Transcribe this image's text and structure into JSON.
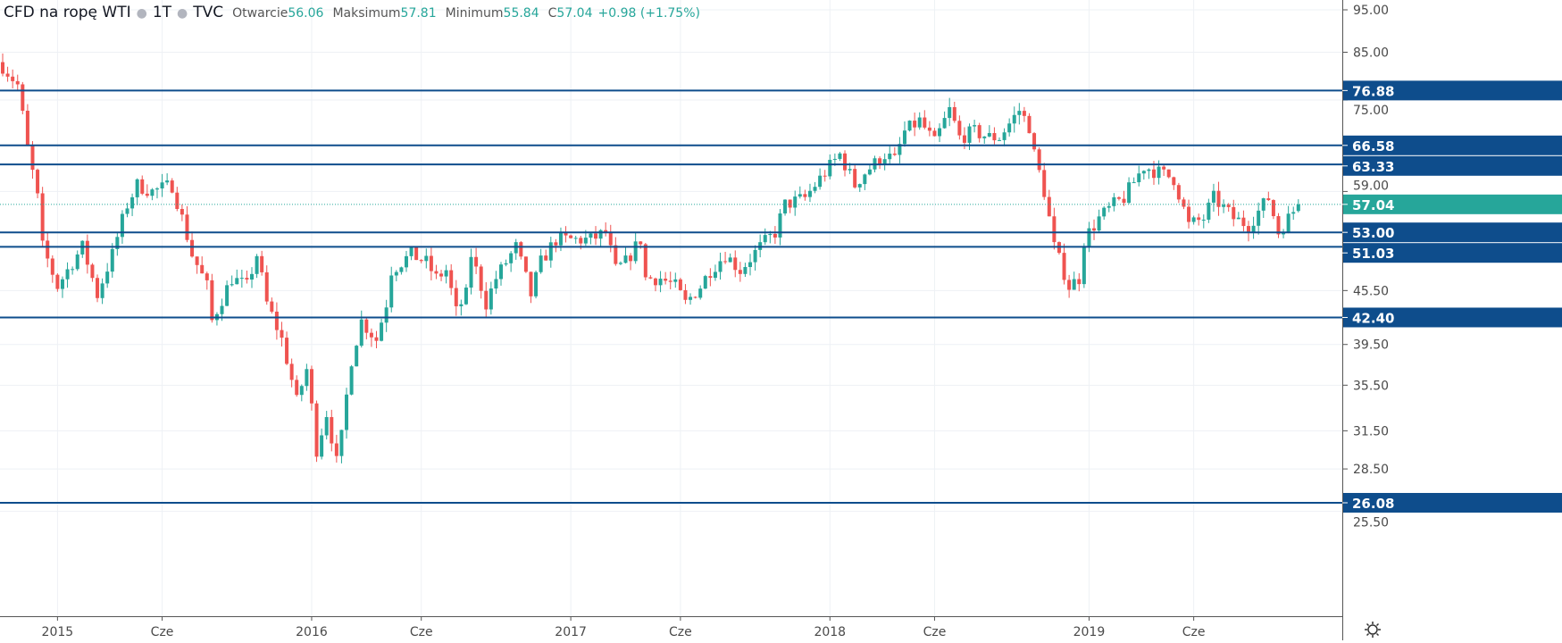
{
  "legend": {
    "symbol": "CFD na ropę WTI",
    "interval": "1T",
    "source": "TVC",
    "open_label": "Otwarcie",
    "open": "56.06",
    "high_label": "Maksimum",
    "high": "57.81",
    "low_label": "Minimum",
    "low": "55.84",
    "close_label": "C",
    "close": "57.04",
    "change": "+0.98 (+1.75%)"
  },
  "colors": {
    "up": "#26a69a",
    "down": "#ef5350",
    "level": "#0e4d8c",
    "grid": "#eef1f5",
    "text": "#4a4a4a"
  },
  "chart_data": {
    "type": "candlestick",
    "title": "CFD na ropę WTI · 1T · TVC",
    "scale": "log",
    "ylim": [
      23.5,
      100
    ],
    "y_ticks": [
      "95.00",
      "85.00",
      "75.00",
      "59.00",
      "45.50",
      "39.50",
      "35.50",
      "31.50",
      "28.50",
      "25.50"
    ],
    "x_ticks": [
      {
        "label": "2015",
        "week": 11
      },
      {
        "label": "Cze",
        "week": 32
      },
      {
        "label": "2016",
        "week": 62
      },
      {
        "label": "Cze",
        "week": 84
      },
      {
        "label": "2017",
        "week": 114
      },
      {
        "label": "Cze",
        "week": 136
      },
      {
        "label": "2018",
        "week": 166
      },
      {
        "label": "Cze",
        "week": 187
      },
      {
        "label": "2019",
        "week": 218
      },
      {
        "label": "Cze",
        "week": 239
      }
    ],
    "horizontal_levels": [
      "76.88",
      "66.58",
      "63.33",
      "53.00",
      "51.03",
      "42.40",
      "26.08"
    ],
    "last_price": "57.04",
    "last_candle": {
      "open": 56.06,
      "high": 57.81,
      "low": 55.84,
      "close": 57.04
    },
    "weekly_close_keypoints": [
      [
        0,
        82
      ],
      [
        3,
        78
      ],
      [
        5,
        66
      ],
      [
        7,
        58
      ],
      [
        8,
        51
      ],
      [
        11,
        46
      ],
      [
        14,
        49
      ],
      [
        16,
        51
      ],
      [
        19,
        45
      ],
      [
        22,
        50
      ],
      [
        25,
        57
      ],
      [
        27,
        60
      ],
      [
        30,
        59
      ],
      [
        34,
        60
      ],
      [
        36,
        55
      ],
      [
        38,
        50
      ],
      [
        41,
        46
      ],
      [
        42,
        42
      ],
      [
        46,
        47
      ],
      [
        49,
        46
      ],
      [
        51,
        50
      ],
      [
        53,
        44
      ],
      [
        56,
        40
      ],
      [
        59,
        34
      ],
      [
        61,
        37
      ],
      [
        63,
        30
      ],
      [
        65,
        33
      ],
      [
        67,
        29
      ],
      [
        68,
        31
      ],
      [
        70,
        38
      ],
      [
        72,
        42
      ],
      [
        75,
        40
      ],
      [
        77,
        44
      ],
      [
        78,
        48
      ],
      [
        82,
        50
      ],
      [
        85,
        49
      ],
      [
        87,
        47
      ],
      [
        89,
        48
      ],
      [
        91,
        43
      ],
      [
        93,
        45
      ],
      [
        94,
        50
      ],
      [
        97,
        44
      ],
      [
        99,
        47
      ],
      [
        101,
        49
      ],
      [
        103,
        51
      ],
      [
        106,
        45
      ],
      [
        108,
        49
      ],
      [
        111,
        52
      ],
      [
        114,
        52
      ],
      [
        118,
        52
      ],
      [
        121,
        53
      ],
      [
        123,
        48
      ],
      [
        125,
        49
      ],
      [
        128,
        52
      ],
      [
        129,
        47
      ],
      [
        132,
        47
      ],
      [
        135,
        46
      ],
      [
        137,
        44
      ],
      [
        140,
        46
      ],
      [
        142,
        48
      ],
      [
        145,
        50
      ],
      [
        148,
        48
      ],
      [
        152,
        51
      ],
      [
        155,
        53
      ],
      [
        157,
        57
      ],
      [
        161,
        58
      ],
      [
        164,
        61
      ],
      [
        168,
        65
      ],
      [
        171,
        60
      ],
      [
        173,
        62
      ],
      [
        177,
        65
      ],
      [
        179,
        64
      ],
      [
        181,
        69
      ],
      [
        184,
        71
      ],
      [
        187,
        67
      ],
      [
        190,
        73
      ],
      [
        192,
        68
      ],
      [
        195,
        69
      ],
      [
        198,
        68
      ],
      [
        200,
        68
      ],
      [
        204,
        73
      ],
      [
        206,
        70
      ],
      [
        207,
        65
      ],
      [
        209,
        59
      ],
      [
        211,
        51
      ],
      [
        214,
        46
      ],
      [
        216,
        47
      ],
      [
        217,
        52
      ],
      [
        220,
        55
      ],
      [
        223,
        57
      ],
      [
        225,
        58
      ],
      [
        229,
        63
      ],
      [
        232,
        62
      ],
      [
        235,
        61
      ],
      [
        238,
        54
      ],
      [
        241,
        55
      ],
      [
        243,
        58
      ],
      [
        247,
        55
      ],
      [
        250,
        54
      ],
      [
        252,
        56
      ],
      [
        254,
        58
      ],
      [
        256,
        53
      ],
      [
        258,
        55
      ],
      [
        260,
        57.04
      ]
    ]
  }
}
